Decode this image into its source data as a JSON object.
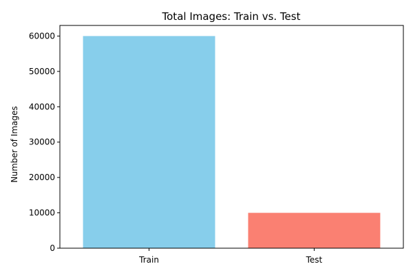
{
  "chart_data": {
    "type": "bar",
    "title": "Total Images: Train vs. Test",
    "xlabel": "",
    "ylabel": "Number of Images",
    "categories": [
      "Train",
      "Test"
    ],
    "values": [
      60000,
      10000
    ],
    "colors": [
      "#87ceeb",
      "#fa8072"
    ],
    "ylim": [
      0,
      63000
    ],
    "yticks": [
      0,
      10000,
      20000,
      30000,
      40000,
      50000,
      60000
    ],
    "grid": false,
    "legend": "none"
  }
}
